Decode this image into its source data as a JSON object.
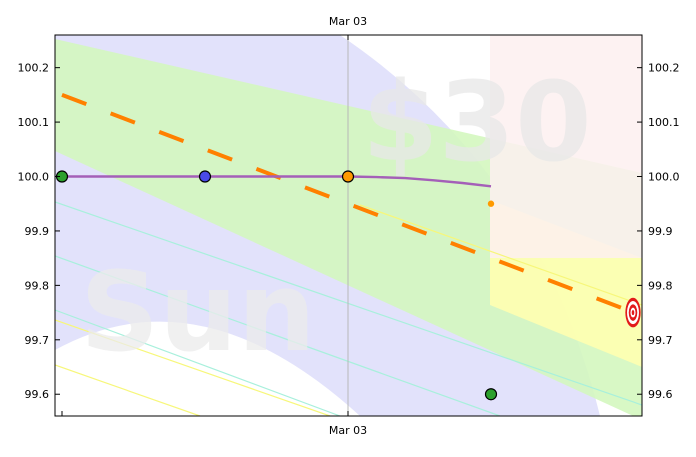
{
  "chart_data": {
    "type": "line",
    "title": "",
    "top_x_label": "Mar 03",
    "bottom_x_label": "Mar 03",
    "xlabel": "",
    "ylabel": "",
    "ylim": [
      99.56,
      100.26
    ],
    "xlim": [
      0,
      1
    ],
    "y_ticks": [
      "100.2",
      "100.1",
      "100.0",
      "99.9",
      "99.8",
      "99.7",
      "99.6"
    ],
    "y_tick_values": [
      100.2,
      100.1,
      100.0,
      99.9,
      99.8,
      99.7,
      99.6
    ],
    "watermarks": [
      "$30",
      "Sun"
    ],
    "colors": {
      "price_line": "#a45fb8",
      "dashed_line": "#ff8000",
      "green_band": "#d4f7bf",
      "blue_band": "#e2e2fb",
      "yellow_band": "#ffffb0",
      "pink_band": "#fdf0f0",
      "target": "#e21a1a"
    },
    "price_line": {
      "x": [
        0.0,
        0.1,
        0.2,
        0.3,
        0.4,
        0.5,
        0.55,
        0.6,
        0.65,
        0.7,
        0.75
      ],
      "y": [
        100.0,
        100.0,
        100.0,
        100.0,
        100.0,
        100.0,
        99.999,
        99.997,
        99.993,
        99.988,
        99.982
      ]
    },
    "dashed_line": {
      "x": [
        0.0,
        1.0
      ],
      "y": [
        100.15,
        99.75
      ]
    },
    "markers": [
      {
        "x": 0.0,
        "y": 100.0,
        "color": "#2ca02c"
      },
      {
        "x": 0.25,
        "y": 100.0,
        "color": "#4a4ae8"
      },
      {
        "x": 0.5,
        "y": 100.0,
        "color": "#ff9a00"
      },
      {
        "x": 0.75,
        "y": 99.6,
        "color": "#2ca02c"
      }
    ],
    "small_marker": {
      "x": 0.75,
      "y": 99.95,
      "color": "#ff9a00"
    },
    "target_point": {
      "x": 1.0,
      "y": 99.75
    },
    "vertical_line_x": 0.5,
    "grid": false,
    "legend": "none"
  }
}
